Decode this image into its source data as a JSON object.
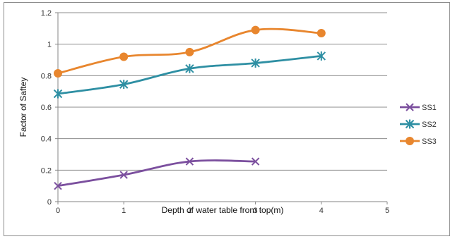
{
  "chart_data": {
    "type": "line",
    "title": "",
    "xlabel": "Depth of water table from top(m)",
    "ylabel": "Factor of Saftey",
    "xlim": [
      0,
      5
    ],
    "ylim": [
      0,
      1.2
    ],
    "xticks": [
      "0",
      "1",
      "2",
      "3",
      "4",
      "5"
    ],
    "yticks": [
      "0",
      "0.2",
      "0.4",
      "0.6",
      "0.8",
      "1",
      "1.2"
    ],
    "grid": "horizontal",
    "legend_position": "right",
    "series": [
      {
        "name": "SS1",
        "color": "#7b4f9e",
        "marker": "x-star",
        "x": [
          0,
          1,
          2,
          3
        ],
        "y": [
          0.1,
          0.17,
          0.255,
          0.255
        ]
      },
      {
        "name": "SS2",
        "color": "#2e8fa3",
        "marker": "asterisk",
        "x": [
          0,
          1,
          2,
          3,
          4
        ],
        "y": [
          0.685,
          0.745,
          0.845,
          0.88,
          0.925
        ]
      },
      {
        "name": "SS3",
        "color": "#e8862e",
        "marker": "circle",
        "x": [
          0,
          1,
          2,
          3,
          4
        ],
        "y": [
          0.815,
          0.92,
          0.95,
          1.09,
          1.07
        ]
      }
    ]
  }
}
